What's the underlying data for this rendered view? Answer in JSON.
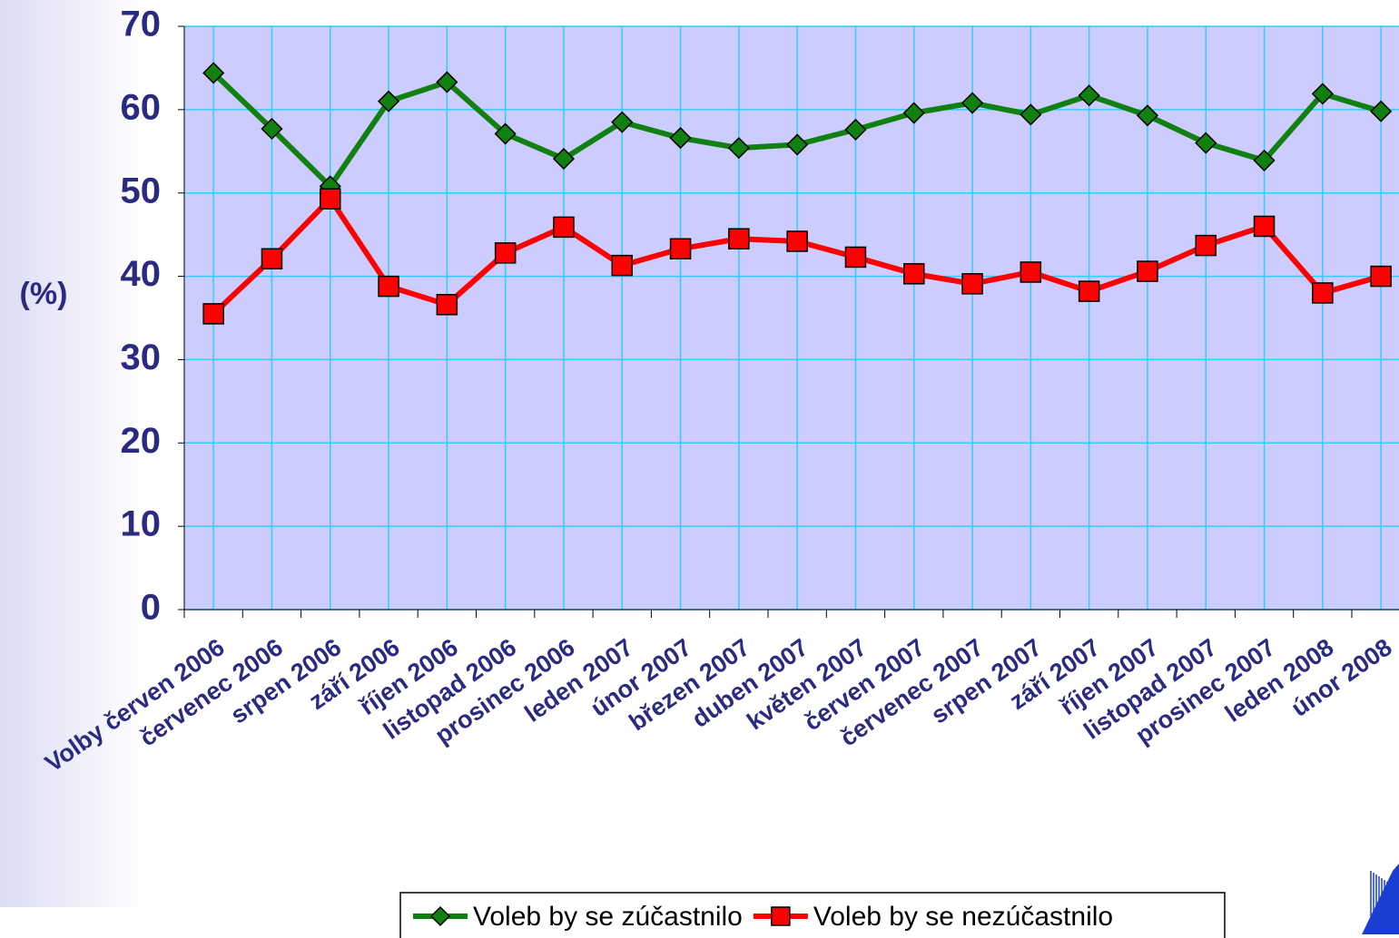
{
  "chart_data": {
    "type": "line",
    "y_label": "(%)",
    "categories": [
      "Volby červen 2006",
      "červenec 2006",
      "srpen 2006",
      "září 2006",
      "říjen 2006",
      "listopad 2006",
      "prosinec 2006",
      "leden 2007",
      "únor 2007",
      "březen 2007",
      "duben 2007",
      "květen 2007",
      "červen 2007",
      "červenec 2007",
      "srpen 2007",
      "září 2007",
      "říjen 2007",
      "listopad 2007",
      "prosinec 2007",
      "leden 2008",
      "únor 2008"
    ],
    "series": [
      {
        "name": "Voleb by se zúčastnilo",
        "color": "#108010",
        "marker": "diamond",
        "values": [
          64.4,
          57.7,
          50.8,
          61.0,
          63.3,
          57.1,
          54.1,
          58.5,
          56.6,
          55.4,
          55.8,
          57.6,
          59.6,
          60.8,
          59.4,
          61.7,
          59.3,
          56.0,
          53.9,
          61.9,
          59.8
        ]
      },
      {
        "name": "Voleb by se nezúčastnilo",
        "color": "#ff0000",
        "marker": "square",
        "values": [
          35.5,
          42.1,
          49.3,
          38.8,
          36.6,
          42.8,
          45.9,
          41.3,
          43.3,
          44.5,
          44.2,
          42.3,
          40.3,
          39.1,
          40.5,
          38.2,
          40.6,
          43.7,
          46.0,
          38.0,
          40.0
        ]
      }
    ],
    "ylim": [
      0,
      70
    ],
    "yticks": [
      0,
      10,
      20,
      30,
      40,
      50,
      60,
      70
    ],
    "grid": true,
    "legend": "bottom"
  }
}
